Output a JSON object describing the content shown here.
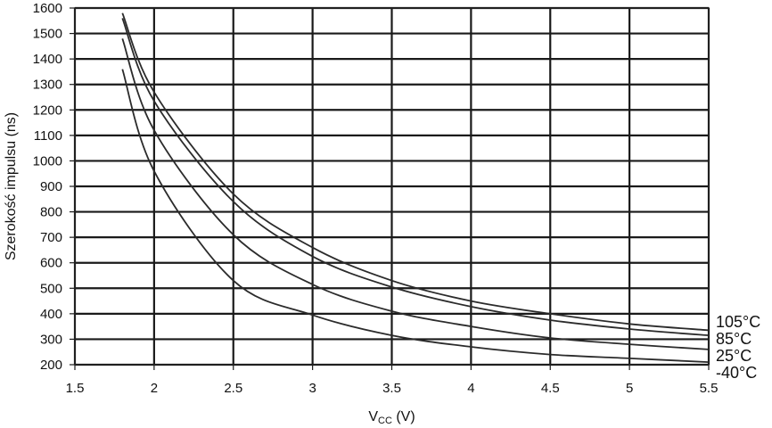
{
  "chart_data": {
    "type": "line",
    "xlabel_main": "V",
    "xlabel_sub": "CC",
    "xlabel_unit": " (V)",
    "ylabel": "Szerokość impulsu (ns)",
    "xlim": [
      1.5,
      5.5
    ],
    "ylim": [
      200,
      1600
    ],
    "xticks": [
      "1.5",
      "2",
      "2.5",
      "3",
      "3.5",
      "4",
      "4.5",
      "5",
      "5.5"
    ],
    "yticks": [
      "200",
      "300",
      "400",
      "500",
      "600",
      "700",
      "800",
      "900",
      "1000",
      "1100",
      "1200",
      "1300",
      "1400",
      "1500",
      "1600"
    ],
    "grid": true,
    "series": [
      {
        "name": "105°C",
        "points": [
          [
            1.8,
            1580
          ],
          [
            2.0,
            1270
          ],
          [
            2.5,
            870
          ],
          [
            3.0,
            660
          ],
          [
            3.5,
            530
          ],
          [
            4.0,
            450
          ],
          [
            4.5,
            400
          ],
          [
            5.0,
            360
          ],
          [
            5.5,
            335
          ]
        ]
      },
      {
        "name": "85°C",
        "points": [
          [
            1.8,
            1560
          ],
          [
            2.0,
            1235
          ],
          [
            2.5,
            840
          ],
          [
            3.0,
            625
          ],
          [
            3.5,
            505
          ],
          [
            4.0,
            428
          ],
          [
            4.5,
            375
          ],
          [
            5.0,
            340
          ],
          [
            5.5,
            315
          ]
        ]
      },
      {
        "name": "25°C",
        "points": [
          [
            1.8,
            1480
          ],
          [
            2.0,
            1120
          ],
          [
            2.5,
            710
          ],
          [
            3.0,
            515
          ],
          [
            3.5,
            410
          ],
          [
            4.0,
            350
          ],
          [
            4.5,
            305
          ],
          [
            5.0,
            280
          ],
          [
            5.5,
            260
          ]
        ]
      },
      {
        "name": "-40°C",
        "points": [
          [
            1.8,
            1360
          ],
          [
            2.0,
            960
          ],
          [
            2.5,
            530
          ],
          [
            3.0,
            395
          ],
          [
            3.5,
            315
          ],
          [
            4.0,
            270
          ],
          [
            4.5,
            240
          ],
          [
            5.0,
            225
          ],
          [
            5.5,
            210
          ]
        ]
      }
    ]
  }
}
